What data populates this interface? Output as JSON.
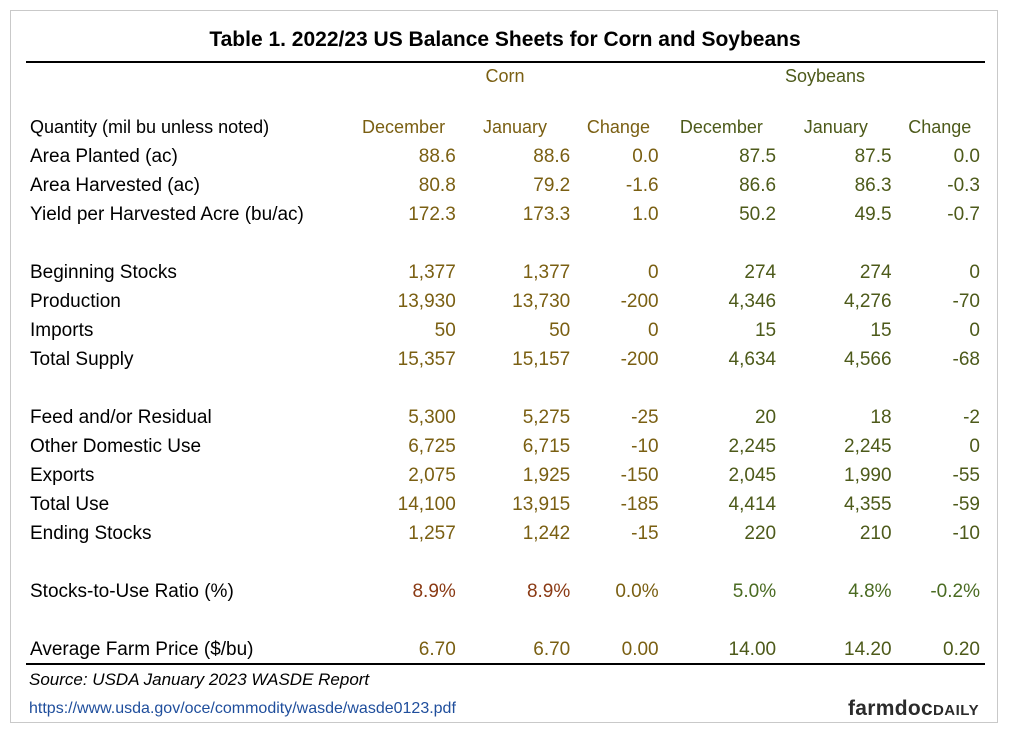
{
  "title": "Table 1. 2022/23 US Balance Sheets for Corn and Soybeans",
  "groups": {
    "corn": "Corn",
    "soybeans": "Soybeans"
  },
  "colors": {
    "corn": "#7a5f12",
    "soy": "#4d5a1a",
    "corn_ratio": "#8a3a14",
    "soy_ratio": "#4a6b22",
    "link": "#1f4e9c"
  },
  "columns": {
    "quantity": "Quantity (mil bu unless noted)",
    "corn_dec": "December",
    "corn_jan": "January",
    "corn_chg": "Change",
    "soy_dec": "December",
    "soy_jan": "January",
    "soy_chg": "Change"
  },
  "rows": [
    {
      "label": "Area Planted (ac)",
      "v": [
        "88.6",
        "88.6",
        "0.0",
        "87.5",
        "87.5",
        "0.0"
      ]
    },
    {
      "label": "Area Harvested (ac)",
      "v": [
        "80.8",
        "79.2",
        "-1.6",
        "86.6",
        "86.3",
        "-0.3"
      ]
    },
    {
      "label": "Yield per Harvested Acre (bu/ac)",
      "v": [
        "172.3",
        "173.3",
        "1.0",
        "50.2",
        "49.5",
        "-0.7"
      ]
    },
    {
      "label": "Beginning Stocks",
      "v": [
        "1,377",
        "1,377",
        "0",
        "274",
        "274",
        "0"
      ]
    },
    {
      "label": "Production",
      "v": [
        "13,930",
        "13,730",
        "-200",
        "4,346",
        "4,276",
        "-70"
      ]
    },
    {
      "label": "Imports",
      "v": [
        "50",
        "50",
        "0",
        "15",
        "15",
        "0"
      ]
    },
    {
      "label": "Total Supply",
      "v": [
        "15,357",
        "15,157",
        "-200",
        "4,634",
        "4,566",
        "-68"
      ]
    },
    {
      "label": "Feed and/or Residual",
      "v": [
        "5,300",
        "5,275",
        "-25",
        "20",
        "18",
        "-2"
      ]
    },
    {
      "label": "Other Domestic Use",
      "v": [
        "6,725",
        "6,715",
        "-10",
        "2,245",
        "2,245",
        "0"
      ]
    },
    {
      "label": "Exports",
      "v": [
        "2,075",
        "1,925",
        "-150",
        "2,045",
        "1,990",
        "-55"
      ]
    },
    {
      "label": "Total Use",
      "v": [
        "14,100",
        "13,915",
        "-185",
        "4,414",
        "4,355",
        "-59"
      ]
    },
    {
      "label": "Ending Stocks",
      "v": [
        "1,257",
        "1,242",
        "-15",
        "220",
        "210",
        "-10"
      ]
    },
    {
      "label": "Stocks-to-Use Ratio (%)",
      "v": [
        "8.9%",
        "8.9%",
        "0.0%",
        "5.0%",
        "4.8%",
        "-0.2%"
      ]
    },
    {
      "label": "Average Farm Price ($/bu)",
      "v": [
        "6.70",
        "6.70",
        "0.00",
        "14.00",
        "14.20",
        "0.20"
      ]
    }
  ],
  "source": "Source: USDA January 2023 WASDE Report",
  "link": "https://www.usda.gov/oce/commodity/wasde/wasde0123.pdf",
  "logo": {
    "main": "farmdoc",
    "sub": "DAILY"
  }
}
